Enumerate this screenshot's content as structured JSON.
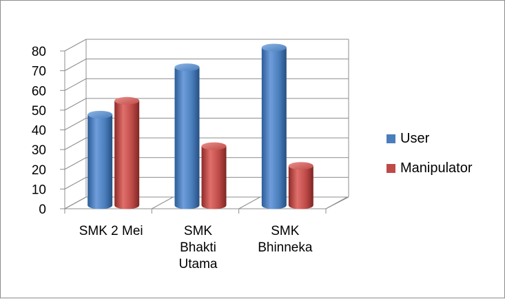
{
  "chart_data": {
    "type": "bar",
    "style": "3d-cylinder",
    "categories": [
      [
        "SMK 2 Mei"
      ],
      [
        "SMK",
        "Bhakti",
        "Utama"
      ],
      [
        "SMK",
        "Bhinneka"
      ]
    ],
    "series": [
      {
        "name": "User",
        "values": [
          46,
          70,
          80
        ],
        "color": "#4a7ebb"
      },
      {
        "name": "Manipulator",
        "values": [
          53,
          30,
          20
        ],
        "color": "#be4b48"
      }
    ],
    "yticks": [
      "0",
      "10",
      "20",
      "30",
      "40",
      "50",
      "60",
      "70",
      "80"
    ],
    "ylim": [
      0,
      80
    ],
    "grid": true,
    "legend": "right"
  }
}
